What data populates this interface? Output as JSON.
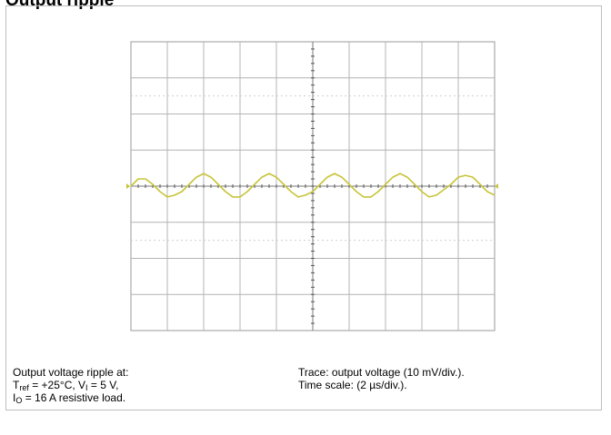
{
  "page": {
    "title": "Output ripple"
  },
  "caption": {
    "left_line1": "Output voltage ripple at:",
    "tref_symbol": "T",
    "tref_sub": "ref",
    "tref_eq": " = +25°C, ",
    "vi_symbol": "V",
    "vi_sub": "I",
    "vi_eq": " = 5 V,",
    "io_symbol": "I",
    "io_sub": "O",
    "io_eq": " = 16 A resistive load.",
    "right_line1": "Trace: output voltage (10 mV/div.).",
    "right_line2": "Time scale: (2 µs/div.)."
  },
  "chart_data": {
    "type": "line",
    "title": "",
    "xlabel": "",
    "ylabel": "",
    "x_divisions": 10,
    "y_divisions": 8,
    "x_unit": "µs",
    "y_unit": "mV",
    "x_per_div": 2,
    "y_per_div": 10,
    "xlim": [
      0,
      20
    ],
    "ylim": [
      -40,
      40
    ],
    "grid": true,
    "trace_color": "#c8c43a",
    "series": [
      {
        "name": "",
        "x": [
          0,
          0.4,
          0.8,
          1.2,
          1.6,
          2.0,
          2.4,
          2.8,
          3.2,
          3.6,
          4.0,
          4.4,
          4.8,
          5.2,
          5.6,
          6.0,
          6.4,
          6.8,
          7.2,
          7.6,
          8.0,
          8.4,
          8.8,
          9.2,
          9.6,
          10.0,
          10.4,
          10.8,
          11.2,
          11.6,
          12.0,
          12.4,
          12.8,
          13.2,
          13.6,
          14.0,
          14.4,
          14.8,
          15.2,
          15.6,
          16.0,
          16.4,
          16.8,
          17.2,
          17.6,
          18.0,
          18.4,
          18.8,
          19.2,
          19.6,
          20.0
        ],
        "y": [
          0.0,
          2.0,
          2.0,
          0.5,
          -1.5,
          -3.0,
          -2.5,
          -1.5,
          0.5,
          2.5,
          3.5,
          2.5,
          0.5,
          -1.5,
          -3.0,
          -3.0,
          -1.5,
          0.5,
          2.5,
          3.5,
          2.5,
          0.5,
          -1.5,
          -3.0,
          -2.5,
          -1.5,
          0.5,
          2.5,
          3.5,
          2.5,
          0.5,
          -1.5,
          -3.0,
          -3.0,
          -1.5,
          0.5,
          2.5,
          3.5,
          2.5,
          0.5,
          -1.5,
          -3.0,
          -2.5,
          -1.0,
          0.5,
          2.5,
          3.0,
          2.5,
          0.5,
          -1.5,
          -2.5
        ]
      }
    ]
  }
}
